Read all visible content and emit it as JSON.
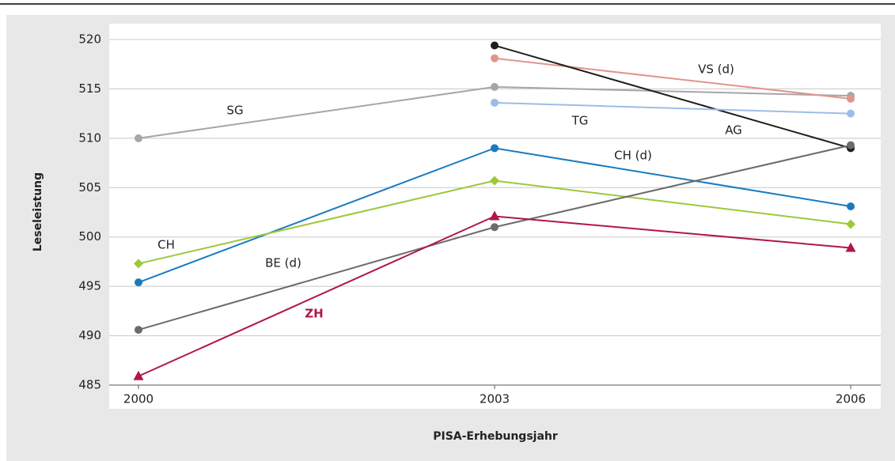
{
  "chart_data": {
    "type": "line",
    "x_label": "PISA-Erhebungsjahr",
    "y_label": "Leseleistung",
    "categories": [
      "2000",
      "2003",
      "2006"
    ],
    "ylim": [
      485,
      520
    ],
    "yticks": [
      485,
      490,
      495,
      500,
      505,
      510,
      515,
      520
    ],
    "grid": true,
    "series": [
      {
        "name": "SG",
        "color": "#a6a6a6",
        "marker": "circle",
        "values": [
          510.0,
          515.2,
          514.3
        ]
      },
      {
        "name": "VS (d)",
        "color": "#e0958b",
        "marker": "circle",
        "values": [
          null,
          518.1,
          514.0
        ]
      },
      {
        "name": "TG",
        "color": "#1e1e1e",
        "marker": "circle",
        "values": [
          null,
          519.4,
          509.0
        ]
      },
      {
        "name": "AG",
        "color": "#9dbde6",
        "marker": "circle",
        "values": [
          null,
          513.6,
          512.5
        ]
      },
      {
        "name": "CH (d)",
        "color": "#1a7ac0",
        "marker": "circle",
        "values": [
          495.4,
          509.0,
          503.1
        ]
      },
      {
        "name": "CH",
        "color": "#9dc83c",
        "marker": "diamond",
        "values": [
          497.3,
          505.7,
          501.3
        ]
      },
      {
        "name": "BE (d)",
        "color": "#6b6b6b",
        "marker": "circle",
        "values": [
          490.6,
          501.0,
          509.3
        ]
      },
      {
        "name": "ZH",
        "color": "#b0164e",
        "marker": "triangle",
        "values": [
          485.9,
          502.1,
          498.9
        ]
      }
    ]
  }
}
